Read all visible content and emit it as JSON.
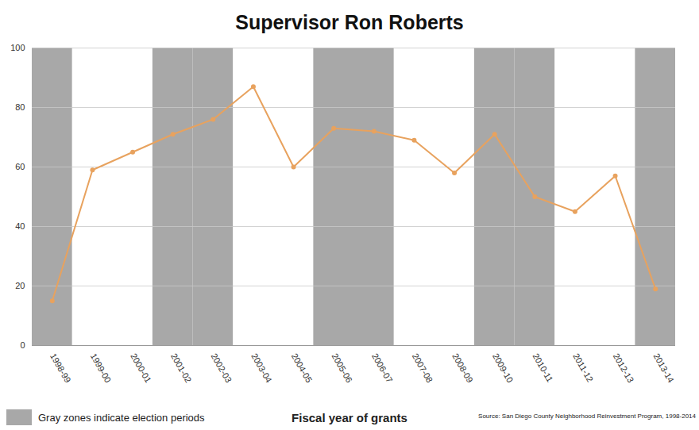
{
  "chart_data": {
    "type": "line",
    "title": "Supervisor Ron Roberts",
    "x_label": "Fiscal year of grants",
    "source": "Source: San Diego County Neighborhood Reinvestment Program, 1998-2014",
    "legend_text": "Gray zones indicate election periods",
    "categories": [
      "1998-99",
      "1999-00",
      "2000-01",
      "2001-02",
      "2002-03",
      "2003-04",
      "2004-05",
      "2005-06",
      "2006-07",
      "2007-08",
      "2008-09",
      "2009-10",
      "2010-11",
      "2011-12",
      "2012-13",
      "2013-14"
    ],
    "values": [
      15,
      59,
      65,
      71,
      76,
      87,
      60,
      73,
      72,
      69,
      58,
      71,
      50,
      45,
      57,
      19
    ],
    "election_periods": [
      "1998-99",
      "2001-02",
      "2002-03",
      "2005-06",
      "2006-07",
      "2009-10",
      "2010-11",
      "2013-14"
    ],
    "color": "#e8a25e",
    "band_color": "#a8a8a8",
    "marker": "circle",
    "ylim": [
      0,
      100
    ],
    "yticks": [
      0,
      20,
      40,
      60,
      80,
      100
    ],
    "grid": true
  }
}
